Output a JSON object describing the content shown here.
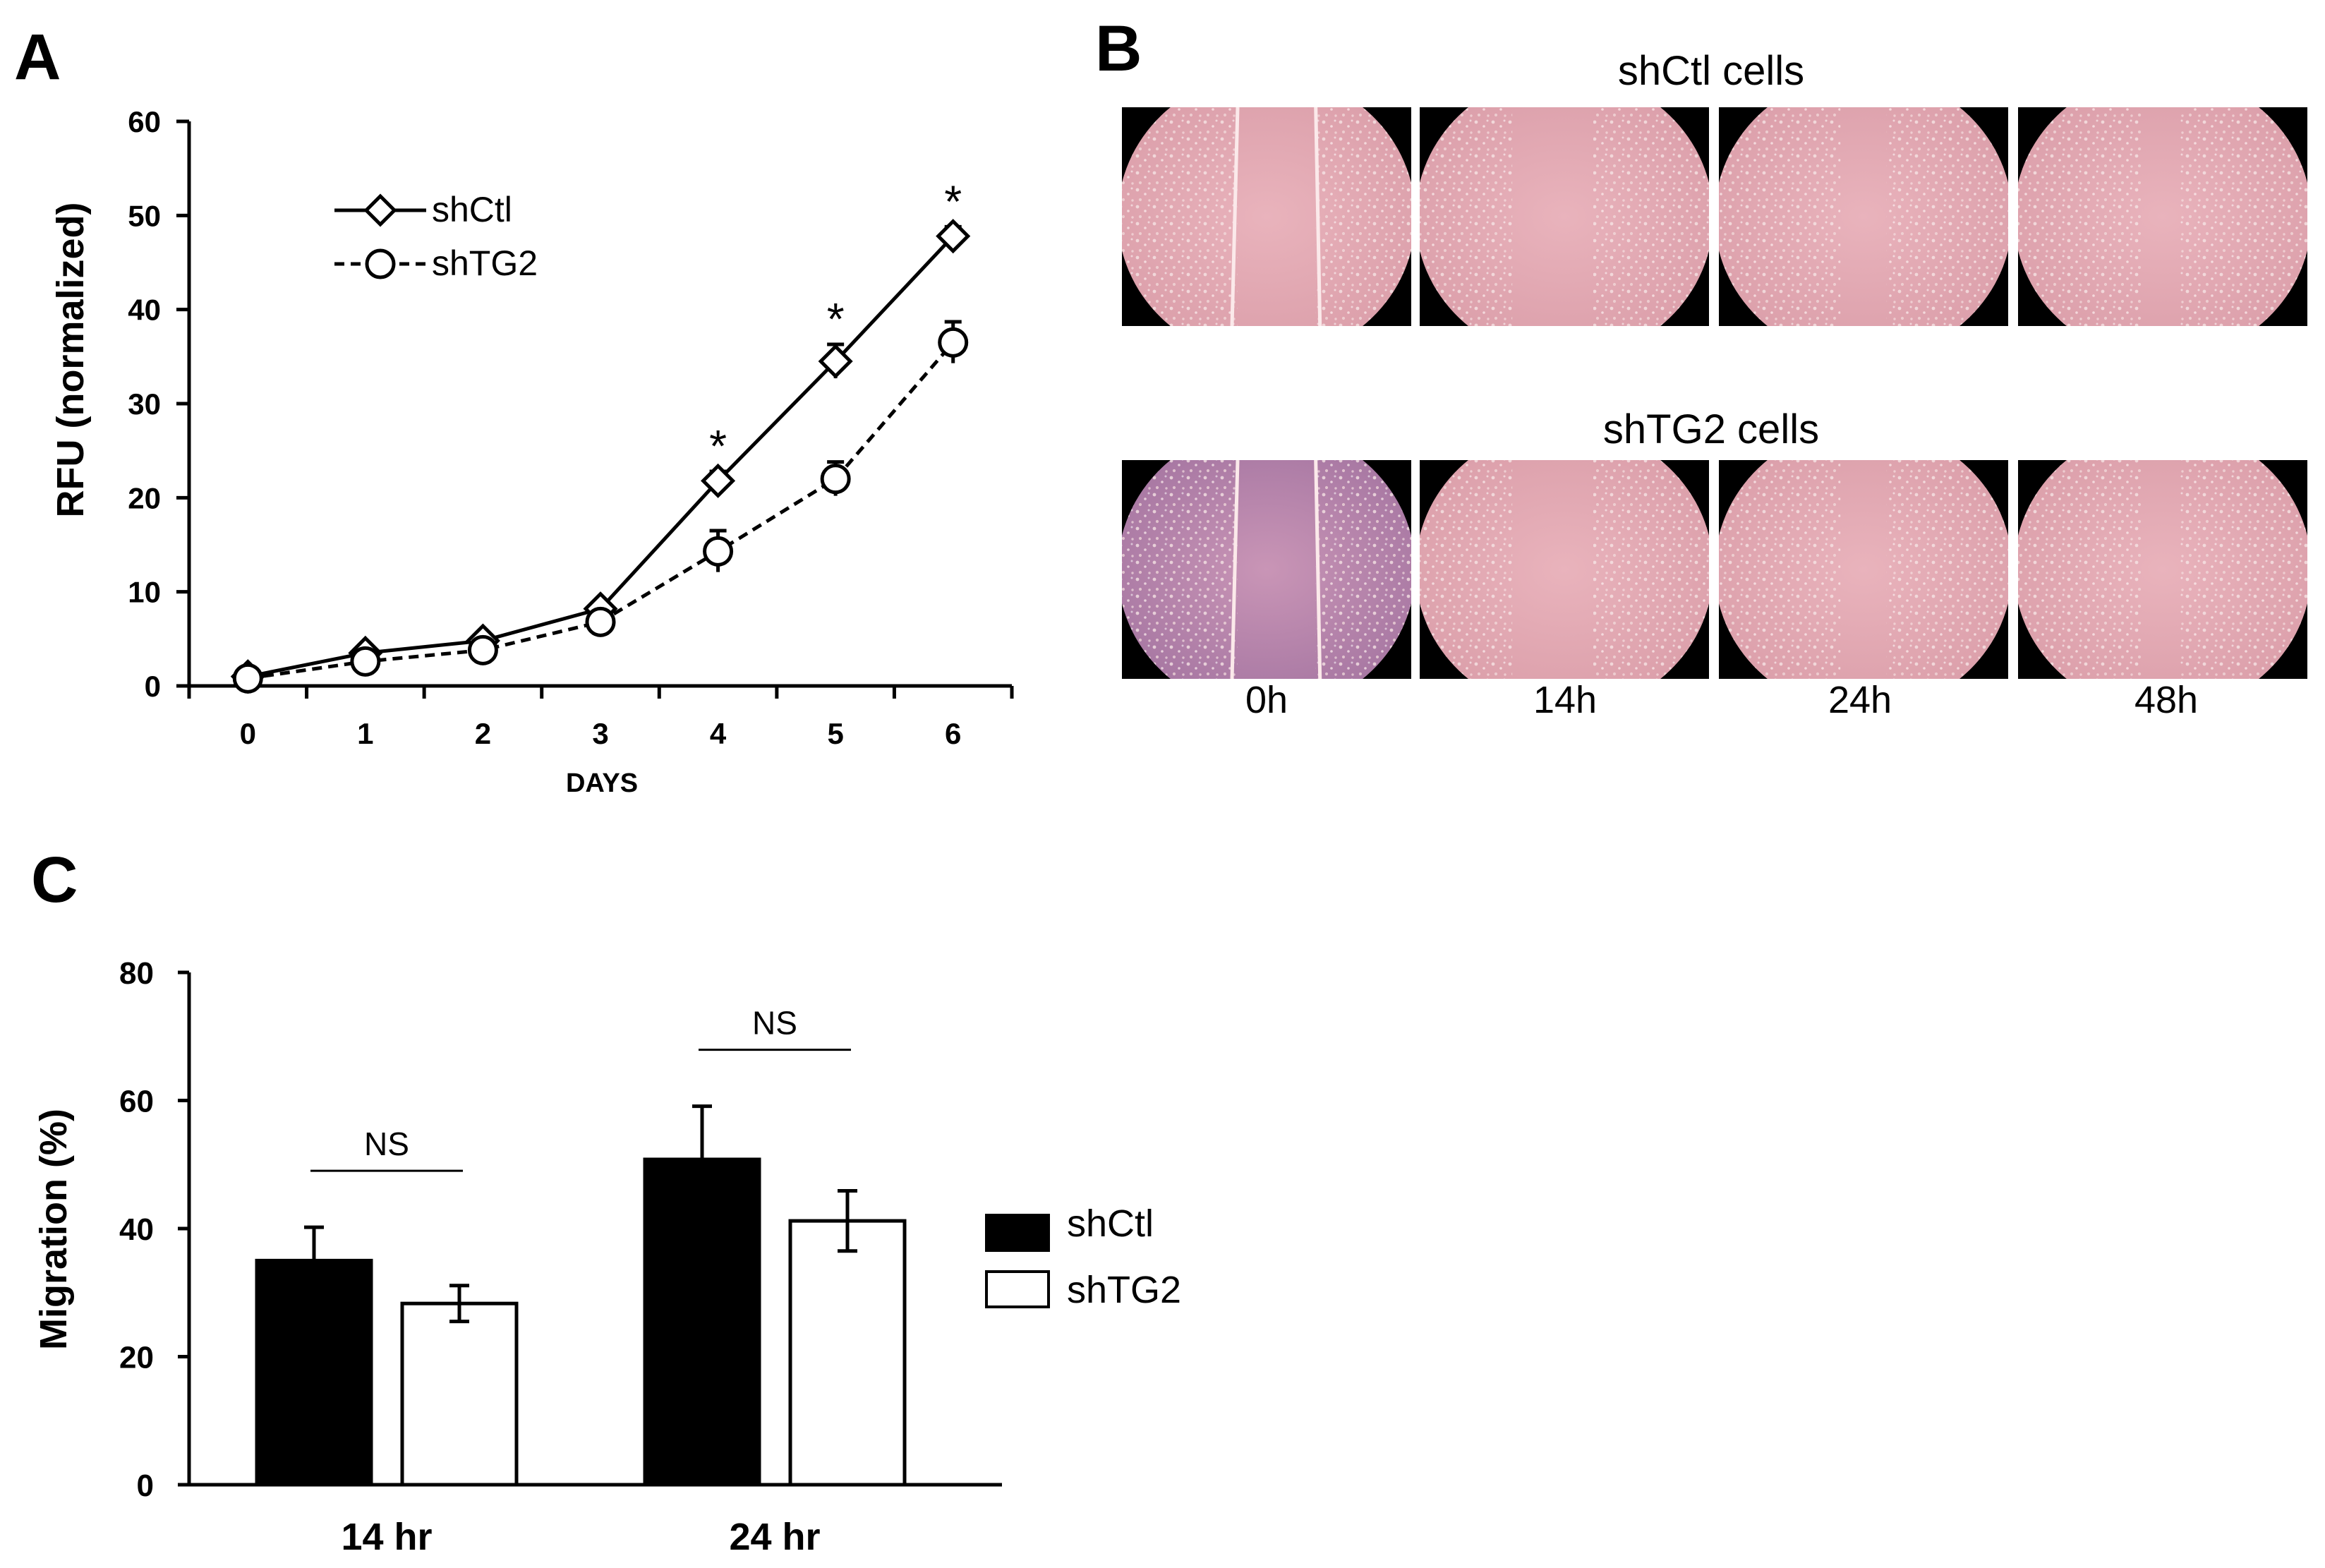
{
  "panel_labels": {
    "a": "A",
    "b": "B",
    "c": "C"
  },
  "panel_b": {
    "rows": [
      "shCtl cells",
      "shTG2 cells"
    ],
    "times": [
      "0h",
      "14h",
      "24h",
      "48h"
    ]
  },
  "chart_data": [
    {
      "panel": "A",
      "type": "line",
      "xlabel": "DAYS",
      "ylabel": "RFU (normalized)",
      "x": [
        0,
        1,
        2,
        3,
        4,
        5,
        6
      ],
      "xlim": [
        -0.5,
        6.5
      ],
      "ylim": [
        0,
        60
      ],
      "yticks": [
        0,
        10,
        20,
        30,
        40,
        50,
        60
      ],
      "legend_position": "top-left",
      "series": [
        {
          "name": "shCtl",
          "marker": "diamond",
          "line": "solid",
          "values": [
            1,
            3.5,
            4.8,
            8.2,
            21.8,
            34.5,
            47.8
          ],
          "errors": [
            0.3,
            0.4,
            0.5,
            0.6,
            1.0,
            1.8,
            1.0
          ]
        },
        {
          "name": "shTG2",
          "marker": "circle",
          "line": "dashed",
          "values": [
            0.8,
            2.6,
            3.8,
            6.8,
            14.3,
            22.0,
            36.5
          ],
          "errors": [
            0.3,
            0.4,
            0.5,
            0.6,
            2.2,
            1.8,
            2.2
          ]
        }
      ],
      "annotations": [
        {
          "x": 4,
          "text": "*"
        },
        {
          "x": 5,
          "text": "*"
        },
        {
          "x": 6,
          "text": "*"
        }
      ]
    },
    {
      "panel": "C",
      "type": "bar",
      "ylabel": "Migration (%)",
      "categories": [
        "14 hr",
        "24 hr"
      ],
      "ylim": [
        0,
        80
      ],
      "yticks": [
        0,
        20,
        40,
        60,
        80
      ],
      "legend_position": "right",
      "series": [
        {
          "name": "shCtl",
          "color": "#000000",
          "values": [
            35,
            50.8
          ],
          "errors": [
            5.2,
            8.3
          ]
        },
        {
          "name": "shTG2",
          "color": "#ffffff",
          "values": [
            28.3,
            41.2
          ],
          "errors": [
            2.8,
            4.7
          ]
        }
      ],
      "annotations": [
        {
          "category": "14 hr",
          "text": "NS"
        },
        {
          "category": "24 hr",
          "text": "NS"
        }
      ]
    }
  ]
}
